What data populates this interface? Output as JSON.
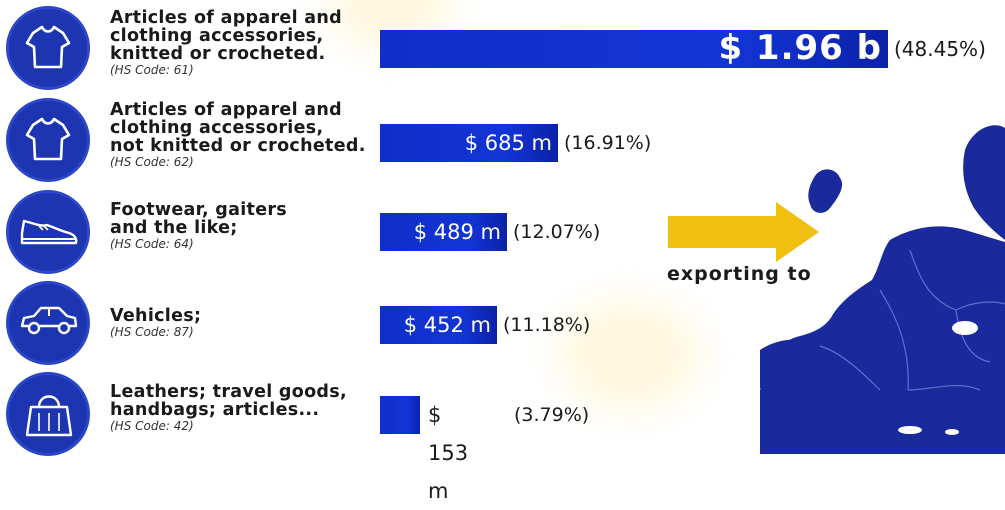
{
  "chart_data": {
    "type": "bar",
    "orientation": "horizontal",
    "unit_prefix": "$",
    "categories": [
      {
        "label_lines": [
          "Articles of apparel and",
          "clothing accessories,",
          "knitted or crocheted."
        ],
        "code": "(HS Code: 61)",
        "icon": "t-shirt-icon",
        "value_usd_millions": 1960,
        "value_label": "$ 1.96 b",
        "percent_label": "(48.45%)"
      },
      {
        "label_lines": [
          "Articles of apparel and",
          "clothing accessories,",
          "not knitted or crocheted."
        ],
        "code": "(HS Code: 62)",
        "icon": "t-shirt-icon",
        "value_usd_millions": 685,
        "value_label": "$ 685 m",
        "percent_label": "(16.91%)"
      },
      {
        "label_lines": [
          "Footwear, gaiters",
          "and the like;"
        ],
        "code": "(HS Code: 64)",
        "icon": "shoe-icon",
        "value_usd_millions": 489,
        "value_label": "$ 489 m",
        "percent_label": "(12.07%)"
      },
      {
        "label_lines": [
          "Vehicles;"
        ],
        "code": "(HS Code: 87)",
        "icon": "car-icon",
        "value_usd_millions": 452,
        "value_label": "$ 452 m",
        "percent_label": "(11.18%)"
      },
      {
        "label_lines": [
          "Leathers; travel goods,",
          "handbags; articles..."
        ],
        "code": "(HS Code: 42)",
        "icon": "handbag-icon",
        "value_usd_millions": 153,
        "value_label": "$ 153 m",
        "percent_label": "(3.79%)"
      }
    ],
    "annotation": "exporting to",
    "colors": {
      "bar": "#1334d6",
      "icon_bg": "#1d35b0",
      "arrow": "#f0bf10",
      "map": "#1a2a9c"
    }
  }
}
